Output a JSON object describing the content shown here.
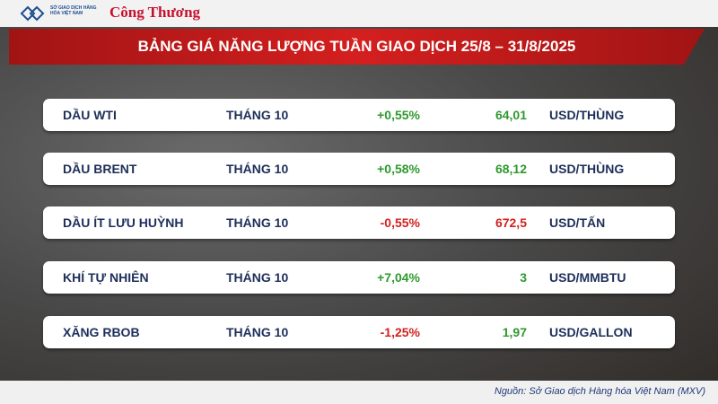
{
  "header": {
    "exchange_logo": "SỞ GIAO DỊCH HÀNG HÓA VIỆT NAM",
    "publisher_logo": "Công Thương",
    "title": "BẢNG GIÁ NĂNG LƯỢNG TUẦN GIAO DỊCH 25/8 – 31/8/2025"
  },
  "table": {
    "rows": [
      {
        "name": "DẦU WTI",
        "month": "THÁNG 10",
        "change": "+0,55%",
        "price": "64,01",
        "unit": "USD/THÙNG",
        "change_color": "#2e9a2e",
        "price_color": "#2e9a2e"
      },
      {
        "name": "DẦU BRENT",
        "month": "THÁNG 10",
        "change": "+0,58%",
        "price": "68,12",
        "unit": "USD/THÙNG",
        "change_color": "#2e9a2e",
        "price_color": "#2e9a2e"
      },
      {
        "name": "DẦU ÍT LƯU HUỲNH",
        "month": "THÁNG 10",
        "change": "-0,55%",
        "price": "672,5",
        "unit": "USD/TẤN",
        "change_color": "#d42020",
        "price_color": "#d42020"
      },
      {
        "name": "KHÍ TỰ NHIÊN",
        "month": "THÁNG 10",
        "change": "+7,04%",
        "price": "3",
        "unit": "USD/MMBTU",
        "change_color": "#2e9a2e",
        "price_color": "#2e9a2e"
      },
      {
        "name": "XĂNG RBOB",
        "month": "THÁNG 10",
        "change": "-1,25%",
        "price": "1,97",
        "unit": "USD/GALLON",
        "change_color": "#d42020",
        "price_color": "#2e9a2e"
      }
    ]
  },
  "footer": {
    "source": "Nguồn: Sở Giao dịch Hàng hóa Việt Nam (MXV)"
  }
}
